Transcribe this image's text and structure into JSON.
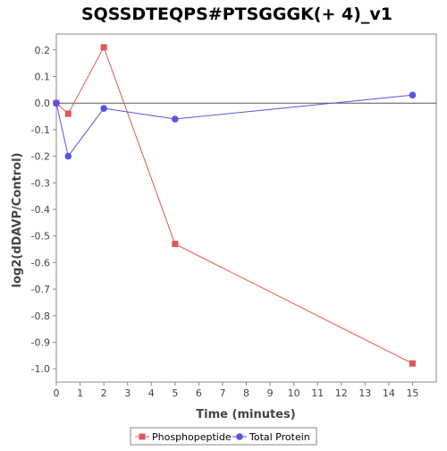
{
  "chart_data": {
    "type": "line",
    "title": "SQSSDTEQPS#PTSGGGK(+ 4)_v1",
    "xlabel": "Time (minutes)",
    "ylabel": "log2(dDAVP/Control)",
    "xlim": [
      0,
      16
    ],
    "ylim": [
      -1.05,
      0.26
    ],
    "x_ticks": [
      0,
      1,
      2,
      3,
      4,
      5,
      6,
      7,
      8,
      9,
      10,
      11,
      12,
      13,
      14,
      15
    ],
    "y_ticks": [
      0.2,
      0.1,
      0.0,
      -0.1,
      -0.2,
      -0.3,
      -0.4,
      -0.5,
      -0.6,
      -0.7,
      -0.8,
      -0.9,
      -1.0
    ],
    "y_tick_labels": [
      "0.2",
      "0.1",
      "0.0",
      "-0.1",
      "-0.2",
      "-0.3",
      "-0.4",
      "-0.5",
      "-0.6",
      "-0.7",
      "-0.8",
      "-0.9",
      "-1.0"
    ],
    "zero_line": true,
    "grid": false,
    "legend_position": "bottom",
    "series": [
      {
        "name": "Phosphopeptide",
        "color": "#e05555",
        "marker": "square",
        "x": [
          0,
          0.5,
          2,
          5,
          15
        ],
        "y": [
          0.0,
          -0.04,
          0.21,
          -0.53,
          -0.98
        ]
      },
      {
        "name": "Total Protein",
        "color": "#5555e0",
        "marker": "circle",
        "x": [
          0,
          0.5,
          2,
          5,
          15
        ],
        "y": [
          0.0,
          -0.2,
          -0.02,
          -0.06,
          0.03
        ]
      }
    ]
  }
}
